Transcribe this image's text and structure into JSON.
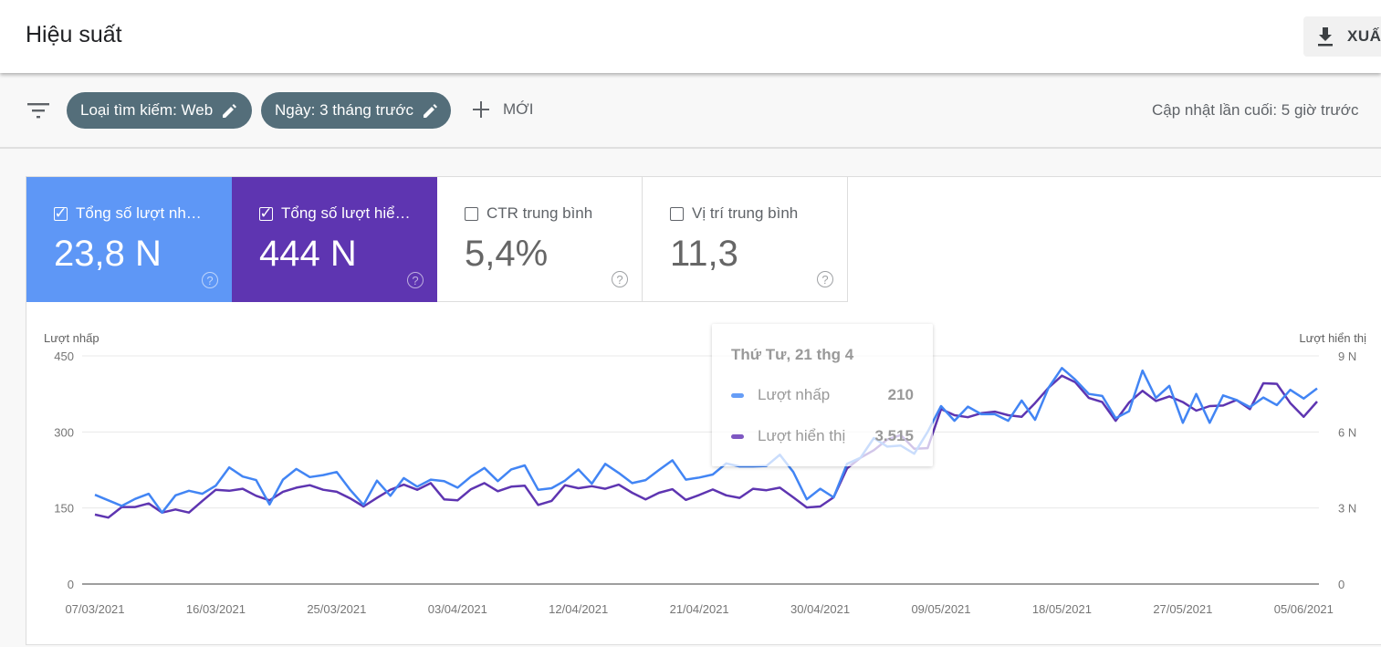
{
  "header": {
    "title": "Hiệu suất",
    "export_label": "XUẤT"
  },
  "filters": {
    "chips": [
      {
        "label": "Loại tìm kiếm: Web"
      },
      {
        "label": "Ngày: 3 tháng trước"
      }
    ],
    "new_label": "MỚI",
    "last_updated": "Cập nhật lần cuối: 5 giờ trước"
  },
  "metrics": [
    {
      "label": "Tổng số lượt nh…",
      "value": "23,8 N",
      "checked": true,
      "color": "#5e97f6"
    },
    {
      "label": "Tổng số lượt hiể…",
      "value": "444 N",
      "checked": true,
      "color": "#5e35b1"
    },
    {
      "label": "CTR trung bình",
      "value": "5,4%",
      "checked": false
    },
    {
      "label": "Vị trí trung bình",
      "value": "11,3",
      "checked": false
    }
  ],
  "tooltip": {
    "date": "Thứ Tư, 21 thg 4",
    "rows": [
      {
        "label": "Lượt nhấp",
        "value": "210",
        "color": "#669df6"
      },
      {
        "label": "Lượt hiển thị",
        "value": "3.515",
        "color": "#7e57c2"
      }
    ]
  },
  "chart_data": {
    "type": "line",
    "left_axis": {
      "title": "Lượt nhấp",
      "ticks": [
        "0",
        "150",
        "300",
        "450"
      ],
      "range": [
        0,
        450
      ]
    },
    "right_axis": {
      "title": "Lượt hiển thị",
      "ticks": [
        "0",
        "3 N",
        "6 N",
        "9 N"
      ],
      "range": [
        0,
        9
      ],
      "unit": "N (thousands)"
    },
    "x_ticks": [
      "07/03/2021",
      "16/03/2021",
      "25/03/2021",
      "03/04/2021",
      "12/04/2021",
      "21/04/2021",
      "30/04/2021",
      "09/05/2021",
      "18/05/2021",
      "27/05/2021",
      "05/06/2021"
    ],
    "x_start": "07/03/2021",
    "x_end": "06/06/2021",
    "grid": true,
    "series": [
      {
        "name": "Lượt nhấp",
        "axis": "left",
        "color": "#4285f4",
        "values": [
          176,
          165,
          154,
          168,
          178,
          141,
          175,
          184,
          178,
          194,
          230,
          212,
          205,
          157,
          206,
          227,
          211,
          215,
          221,
          186,
          156,
          204,
          174,
          209,
          192,
          206,
          203,
          190,
          212,
          229,
          203,
          226,
          234,
          186,
          189,
          204,
          226,
          198,
          237,
          219,
          199,
          205,
          225,
          244,
          206,
          210,
          216,
          238,
          232,
          232,
          233,
          255,
          221,
          167,
          188,
          171,
          237,
          249,
          288,
          271,
          273,
          257,
          300,
          351,
          322,
          350,
          335,
          335,
          322,
          362,
          324,
          387,
          426,
          403,
          375,
          371,
          327,
          341,
          421,
          367,
          391,
          318,
          375,
          318,
          372,
          363,
          349,
          368,
          353,
          383,
          366,
          386
        ]
      },
      {
        "name": "Lượt hiển thị",
        "axis": "right",
        "color": "#5e35b1",
        "values": [
          2.74,
          2.62,
          3.04,
          3.04,
          3.18,
          2.82,
          2.94,
          2.82,
          3.28,
          3.72,
          3.68,
          3.76,
          3.48,
          3.3,
          3.64,
          3.8,
          3.9,
          3.72,
          3.64,
          3.38,
          3.06,
          3.4,
          3.72,
          3.92,
          3.72,
          3.98,
          3.34,
          3.3,
          3.74,
          3.98,
          3.66,
          3.84,
          3.88,
          3.12,
          3.28,
          3.9,
          3.78,
          3.86,
          3.76,
          3.92,
          3.6,
          3.34,
          3.6,
          3.74,
          3.32,
          3.515,
          3.73,
          3.5,
          3.4,
          3.76,
          3.7,
          3.8,
          3.42,
          3.02,
          3.06,
          3.42,
          4.56,
          4.98,
          5.28,
          5.7,
          5.88,
          5.34,
          5.36,
          6.9,
          6.66,
          6.58,
          6.74,
          6.8,
          6.66,
          6.6,
          7.14,
          7.74,
          8.22,
          7.96,
          7.34,
          7.18,
          6.44,
          7.16,
          7.62,
          7.22,
          7.4,
          7.18,
          6.84,
          7.02,
          7.04,
          7.26,
          6.9,
          7.92,
          7.9,
          7.14,
          6.6,
          7.2
        ]
      }
    ]
  }
}
